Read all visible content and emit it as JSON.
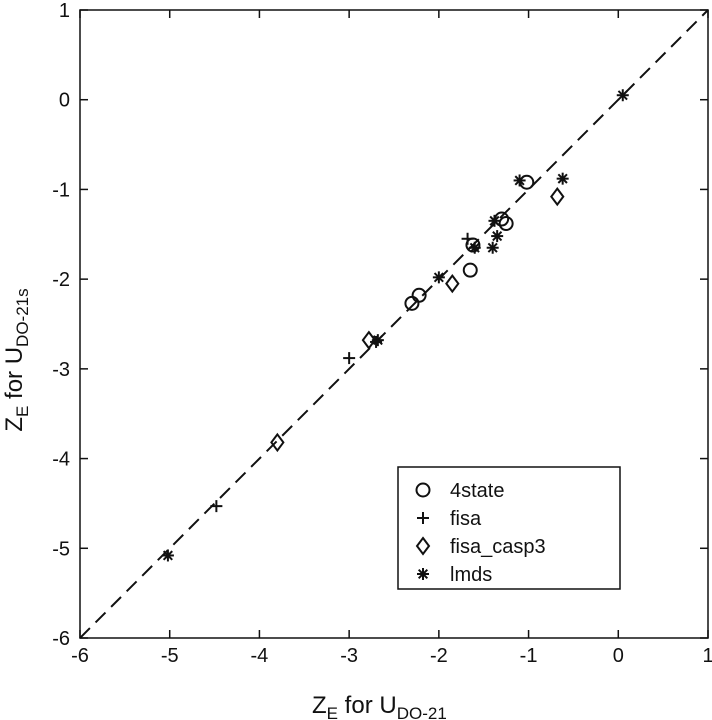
{
  "chart_data": {
    "type": "scatter",
    "title": "",
    "xlabel": {
      "main": "Z",
      "main_sub": "E",
      "rest": " for U",
      "rest_sub": "DO-21"
    },
    "ylabel": {
      "main": "Z",
      "main_sub": "E",
      "rest": " for U",
      "rest_sub": "DO-21s"
    },
    "xlim": [
      -6,
      1
    ],
    "ylim": [
      -6,
      1
    ],
    "xticks": [
      "-6",
      "-5",
      "-4",
      "-3",
      "-2",
      "-1",
      "0",
      "1"
    ],
    "yticks": [
      "1",
      "0",
      "-1",
      "-2",
      "-3",
      "-4",
      "-5",
      "-6"
    ],
    "grid": false,
    "legend_position": "bottom-right",
    "reference_line": {
      "style": "dashed",
      "from": [
        -6,
        -6
      ],
      "to": [
        1,
        1
      ]
    },
    "series": [
      {
        "name": "4state",
        "marker": "circle",
        "points": [
          [
            -1.02,
            -0.92
          ],
          [
            -1.25,
            -1.38
          ],
          [
            -1.3,
            -1.33
          ],
          [
            -1.62,
            -1.62
          ],
          [
            -1.65,
            -1.9
          ],
          [
            -2.22,
            -2.18
          ],
          [
            -2.3,
            -2.27
          ]
        ]
      },
      {
        "name": "fisa",
        "marker": "plus",
        "points": [
          [
            -1.68,
            -1.55
          ],
          [
            -2.7,
            -2.7
          ],
          [
            -3.0,
            -2.88
          ],
          [
            -4.48,
            -4.53
          ]
        ]
      },
      {
        "name": "fisa_casp3",
        "marker": "diamond",
        "points": [
          [
            -0.68,
            -1.08
          ],
          [
            -1.85,
            -2.05
          ],
          [
            -2.78,
            -2.68
          ],
          [
            -3.8,
            -3.82
          ]
        ]
      },
      {
        "name": "lmds",
        "marker": "asterisk",
        "points": [
          [
            0.05,
            0.05
          ],
          [
            -0.62,
            -0.88
          ],
          [
            -1.1,
            -0.9
          ],
          [
            -1.38,
            -1.35
          ],
          [
            -1.35,
            -1.52
          ],
          [
            -1.4,
            -1.65
          ],
          [
            -1.6,
            -1.65
          ],
          [
            -2.0,
            -1.98
          ],
          [
            -2.68,
            -2.68
          ],
          [
            -5.02,
            -5.08
          ]
        ]
      }
    ]
  }
}
